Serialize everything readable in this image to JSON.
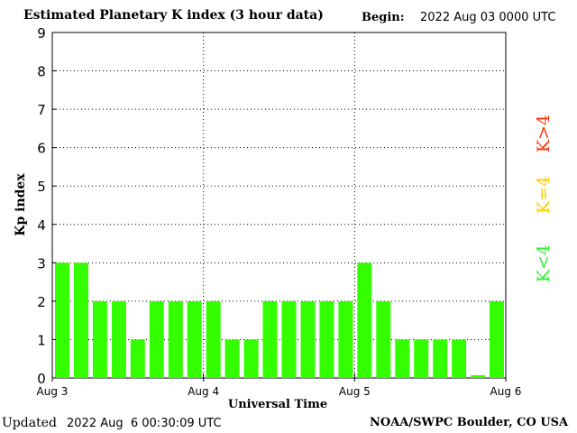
{
  "header": {
    "title": "Estimated Planetary K index (3 hour data)",
    "begin_label": "Begin:",
    "begin_value": "2022 Aug 03 0000 UTC"
  },
  "footer": {
    "updated_label": "Updated",
    "updated_value": "2022 Aug  6 00:30:09 UTC",
    "source": "NOAA/SWPC Boulder, CO USA"
  },
  "legend": {
    "high": "K>4",
    "mid": "K=4",
    "low": "K<4",
    "colors": {
      "high": "#ff3300",
      "mid": "#ffcc00",
      "low": "#33ee33"
    }
  },
  "chart_data": {
    "type": "bar",
    "title": "Estimated Planetary K index (3 hour data)",
    "xlabel": "Universal Time",
    "ylabel": "Kp index",
    "ylim": [
      0,
      9
    ],
    "yticks": [
      "0",
      "1",
      "2",
      "3",
      "4",
      "5",
      "6",
      "7",
      "8",
      "9"
    ],
    "xticks": [
      "Aug 3",
      "Aug 4",
      "Aug 5",
      "Aug 6"
    ],
    "grid": true,
    "bar_color": "#33ff00",
    "values": [
      3,
      3,
      2,
      2,
      1,
      2,
      2,
      2,
      2,
      1,
      1,
      2,
      2,
      2,
      2,
      2,
      3,
      2,
      1,
      1,
      1,
      1,
      0.07,
      2
    ]
  }
}
